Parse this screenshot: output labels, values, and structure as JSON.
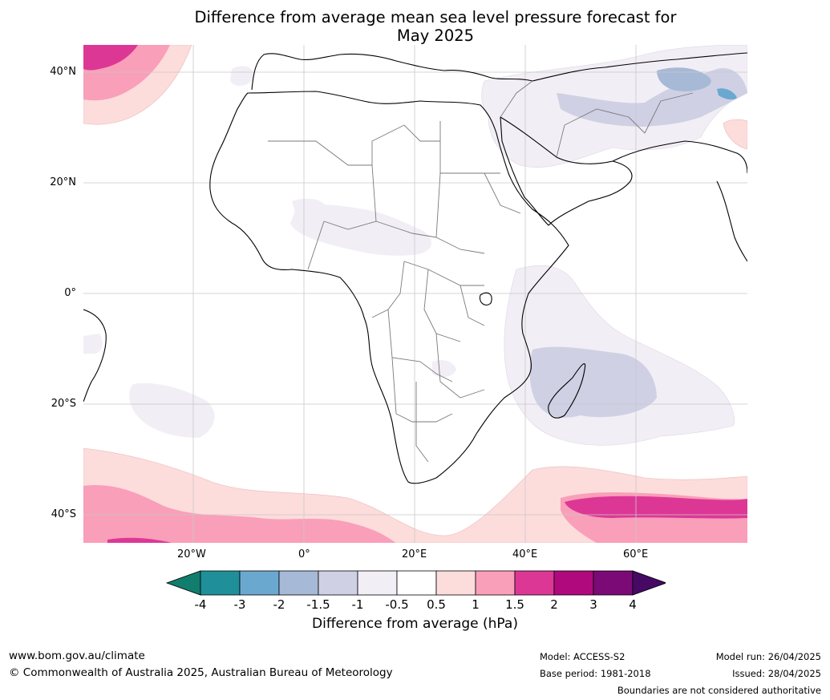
{
  "title": {
    "line1": "Difference from average mean sea level pressure forecast for",
    "line2": "May 2025"
  },
  "map": {
    "region": "Africa",
    "lat_labels": [
      "40°N",
      "20°N",
      "0°",
      "20°S",
      "40°S"
    ],
    "lon_labels": [
      "20°W",
      "0°",
      "20°E",
      "40°E",
      "60°E"
    ]
  },
  "colorbar": {
    "title": "Difference from average (hPa)",
    "ticks": [
      "-4",
      "-3",
      "-2",
      "-1.5",
      "-1",
      "-0.5",
      "0.5",
      "1",
      "1.5",
      "2",
      "3",
      "4"
    ],
    "colors": [
      "#117d6e",
      "#1f8f99",
      "#6aa8d0",
      "#a6b9d6",
      "#cfd0e4",
      "#f2eef5",
      "#ffffff",
      "#fddcdc",
      "#f99fb9",
      "#dd3796",
      "#b0097e",
      "#7b0a76",
      "#460a64"
    ]
  },
  "footer": {
    "website": "www.bom.gov.au/climate",
    "copyright": "© Commonwealth of Australia 2025, Australian Bureau of Meteorology",
    "model": "Model: ACCESS-S2",
    "base_period": "Base period: 1981-2018",
    "model_run": "Model run: 26/04/2025",
    "issued": "Issued: 28/04/2025",
    "disclaimer": "Boundaries are not considered authoritative"
  }
}
